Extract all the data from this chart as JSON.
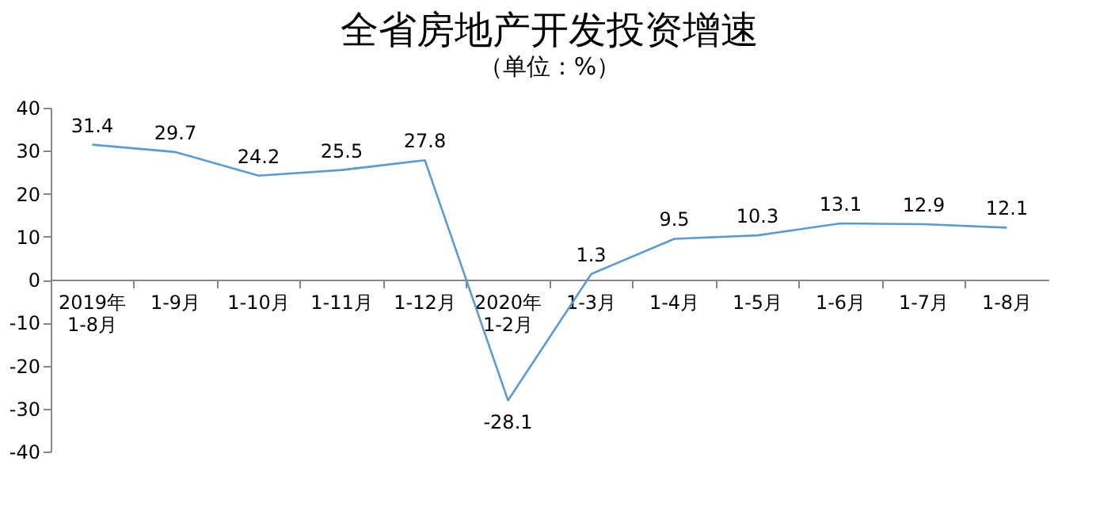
{
  "chart_data": {
    "type": "line",
    "title": "全省房地产开发投资增速",
    "subtitle": "（单位：%）",
    "categories": [
      "2019年\n1-8月",
      "1-9月",
      "1-10月",
      "1-11月",
      "1-12月",
      "2020年\n1-2月",
      "1-3月",
      "1-4月",
      "1-5月",
      "1-6月",
      "1-7月",
      "1-8月"
    ],
    "series": [
      {
        "color": "#5b9bd5",
        "values": [
          31.4,
          29.7,
          24.2,
          25.5,
          27.8,
          -28.1,
          1.3,
          9.5,
          10.3,
          13.1,
          12.9,
          12.1
        ]
      }
    ],
    "ylim": [
      -40,
      40
    ],
    "yticks": [
      -40,
      -30,
      -20,
      -10,
      0,
      10,
      20,
      30,
      40
    ],
    "grid": false,
    "legend": false,
    "data_labels": true,
    "marker": "none",
    "line_style": "solid"
  }
}
